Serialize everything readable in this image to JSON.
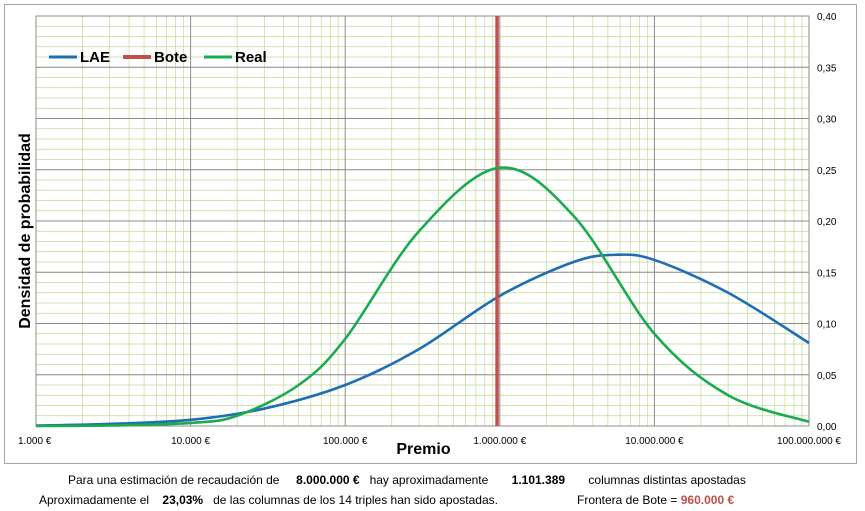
{
  "chart_data": {
    "type": "line",
    "xlabel": "Premio",
    "ylabel": "Densidad de probabilidad",
    "x_scale": "log",
    "xlim": [
      1000,
      100000000
    ],
    "ylim": [
      0,
      0.4
    ],
    "x_ticks": [
      "1.000 €",
      "10.000 €",
      "100.000 €",
      "1.000.000 €",
      "10.000.000 €",
      "100.000.000 €"
    ],
    "y_ticks": [
      "0,00",
      "0,05",
      "0,10",
      "0,15",
      "0,20",
      "0,25",
      "0,30",
      "0,35",
      "0,40"
    ],
    "grid": true,
    "legend_position": "top-left",
    "series": [
      {
        "name": "LAE",
        "color": "#1f6db3",
        "x": [
          1000,
          3000,
          10000,
          30000,
          100000,
          300000,
          1000000,
          3000000,
          5600000,
          10000000,
          30000000,
          100000000
        ],
        "y": [
          0.0004,
          0.002,
          0.006,
          0.017,
          0.04,
          0.075,
          0.127,
          0.16,
          0.167,
          0.162,
          0.13,
          0.081
        ]
      },
      {
        "name": "Bote",
        "color": "#c0504d",
        "x": [
          960000,
          960000
        ],
        "y": [
          0,
          0.4
        ]
      },
      {
        "name": "Real",
        "color": "#1aab50",
        "x": [
          1000,
          3000,
          10000,
          20000,
          50000,
          100000,
          300000,
          1000000,
          3000000,
          10000000,
          30000000,
          100000000
        ],
        "y": [
          0.0,
          0.0005,
          0.003,
          0.01,
          0.04,
          0.085,
          0.19,
          0.252,
          0.205,
          0.09,
          0.03,
          0.004
        ]
      }
    ]
  },
  "summary": {
    "line1_prefix": "Para  una estimación de recaudación de",
    "recaudacion": "8.000.000 €",
    "line1_mid": "hay aproximadamente",
    "columnas": "1.101.389",
    "line1_suffix": "columnas distintas apostadas",
    "line2_prefix": "Aproximadamente el",
    "porcentaje": "23,03%",
    "line2_mid": "de las columnas de los 14 triples han sido apostadas.",
    "frontera_label": "Frontera de Bote =",
    "frontera_value": "960.000 €"
  }
}
